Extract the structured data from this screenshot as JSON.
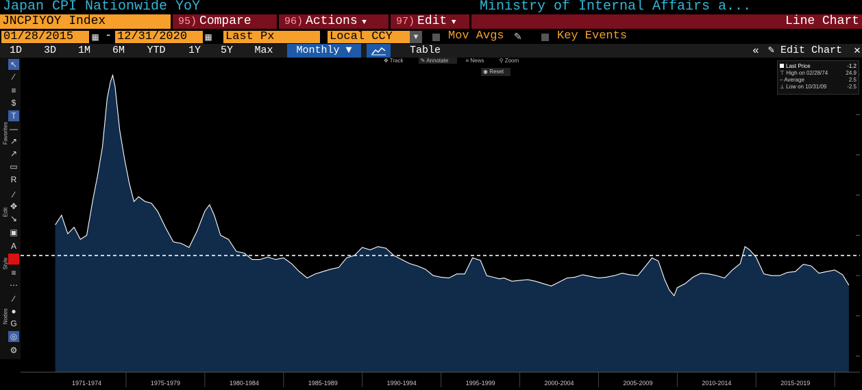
{
  "header": {
    "title": "Japan CPI Nationwide YoY",
    "source": "Ministry of Internal Affairs a...",
    "ticker": "JNCPIYOY Index",
    "compare_num": "95)",
    "compare_label": "Compare",
    "actions_num": "96)",
    "actions_label": "Actions",
    "edit_num": "97)",
    "edit_label": "Edit",
    "chart_kind": "Line Chart"
  },
  "controls": {
    "start_date": "01/28/2015",
    "range_sep": "-",
    "end_date": "12/31/2020",
    "field": "Last Px",
    "currency": "Local CCY",
    "mov_avgs": "Mov Avgs",
    "key_events": "Key Events",
    "periods": [
      "1D",
      "3D",
      "1M",
      "6M",
      "YTD",
      "1Y",
      "5Y",
      "Max"
    ],
    "frequency": "Monthly ▼",
    "table_label": "Table",
    "collapse_label": "«",
    "edit_chart_label": "Edit Chart"
  },
  "sidebar": {
    "favorites_label": "Favorites",
    "edit_label": "Edit",
    "style_label": "Style",
    "nodes_label": "Nodes"
  },
  "chart_tools": {
    "track": "Track",
    "annotate": "Annotate",
    "news": "News",
    "zoom": "Zoom",
    "reset": "Reset"
  },
  "legend": {
    "last_price_label": "Last Price",
    "last_price_value": "-1.2",
    "high_label": "High on 02/28/74",
    "high_value": "24.9",
    "average_label": "Average",
    "average_value": "2.5",
    "low_label": "Low on 10/31/09",
    "low_value": "-2.5"
  },
  "colors": {
    "accent_orange": "#f6a02b",
    "title_cyan": "#33b6d9",
    "menu_red": "#7a0f1e",
    "area_fill": "#112b4a",
    "line": "#ffffff"
  },
  "chart_data": {
    "type": "area",
    "x_tick_labels": [
      "1971-1974",
      "1975-1979",
      "1980-1984",
      "1985-1989",
      "1990-1994",
      "1995-1999",
      "2000-2004",
      "2005-2009",
      "2010-2014",
      "2015-2019"
    ],
    "average_line": 2.5,
    "ylim": [
      -12,
      27
    ],
    "grid": false,
    "x": [
      1970.5,
      1970.9,
      1971.3,
      1971.7,
      1972.1,
      1972.5,
      1972.9,
      1973.2,
      1973.5,
      1973.8,
      1974.0,
      1974.15,
      1974.3,
      1974.6,
      1974.9,
      1975.2,
      1975.5,
      1975.8,
      1976.2,
      1976.6,
      1977.0,
      1977.5,
      1978.0,
      1978.5,
      1979.0,
      1979.5,
      1980.0,
      1980.3,
      1980.6,
      1981.0,
      1981.5,
      1982.0,
      1982.5,
      1983.0,
      1983.5,
      1984.0,
      1984.5,
      1985.0,
      1985.5,
      1986.0,
      1986.5,
      1987.0,
      1987.5,
      1988.0,
      1988.5,
      1989.0,
      1989.5,
      1990.0,
      1990.5,
      1991.0,
      1991.5,
      1992.0,
      1992.5,
      1993.0,
      1993.5,
      1994.0,
      1994.5,
      1995.0,
      1995.5,
      1996.0,
      1996.5,
      1997.0,
      1997.5,
      1997.9,
      1998.3,
      1998.7,
      1999.0,
      1999.5,
      2000.0,
      2000.5,
      2001.0,
      2001.5,
      2002.0,
      2002.5,
      2003.0,
      2003.5,
      2004.0,
      2004.5,
      2005.0,
      2005.5,
      2006.0,
      2006.5,
      2007.0,
      2007.5,
      2008.0,
      2008.4,
      2008.8,
      2009.2,
      2009.5,
      2009.8,
      2010.0,
      2010.5,
      2011.0,
      2011.5,
      2012.0,
      2012.5,
      2013.0,
      2013.5,
      2014.0,
      2014.3,
      2014.6,
      2015.0,
      2015.5,
      2016.0,
      2016.5,
      2017.0,
      2017.5,
      2018.0,
      2018.5,
      2019.0,
      2019.5,
      2020.0,
      2020.5,
      2020.9
    ],
    "values": [
      6.3,
      7.5,
      5.2,
      6.0,
      4.5,
      5.0,
      9.5,
      12.5,
      16.0,
      22.0,
      24.0,
      24.9,
      23.5,
      18.0,
      14.5,
      11.5,
      9.2,
      9.8,
      9.2,
      9.0,
      8.0,
      6.0,
      4.2,
      4.0,
      3.5,
      5.5,
      8.0,
      8.8,
      7.5,
      5.0,
      4.5,
      3.0,
      2.8,
      2.0,
      2.0,
      2.3,
      2.0,
      2.2,
      1.5,
      0.5,
      -0.3,
      0.2,
      0.5,
      0.8,
      1.0,
      2.2,
      2.5,
      3.5,
      3.2,
      3.6,
      3.4,
      2.5,
      2.0,
      1.5,
      1.2,
      0.8,
      0.0,
      -0.2,
      -0.3,
      0.2,
      0.2,
      2.2,
      1.9,
      0.0,
      -0.2,
      -0.4,
      -0.3,
      -0.7,
      -0.6,
      -0.5,
      -0.7,
      -1.0,
      -1.3,
      -0.8,
      -0.3,
      -0.2,
      0.1,
      -0.1,
      -0.3,
      -0.2,
      0.0,
      0.3,
      0.1,
      0.0,
      1.2,
      2.2,
      1.8,
      -0.5,
      -1.8,
      -2.5,
      -1.5,
      -1.0,
      -0.2,
      0.3,
      0.2,
      0.0,
      -0.3,
      0.7,
      1.5,
      3.6,
      3.2,
      2.3,
      0.2,
      0.0,
      0.0,
      0.4,
      0.5,
      1.4,
      1.2,
      0.3,
      0.5,
      0.7,
      0.1,
      -1.2
    ]
  }
}
